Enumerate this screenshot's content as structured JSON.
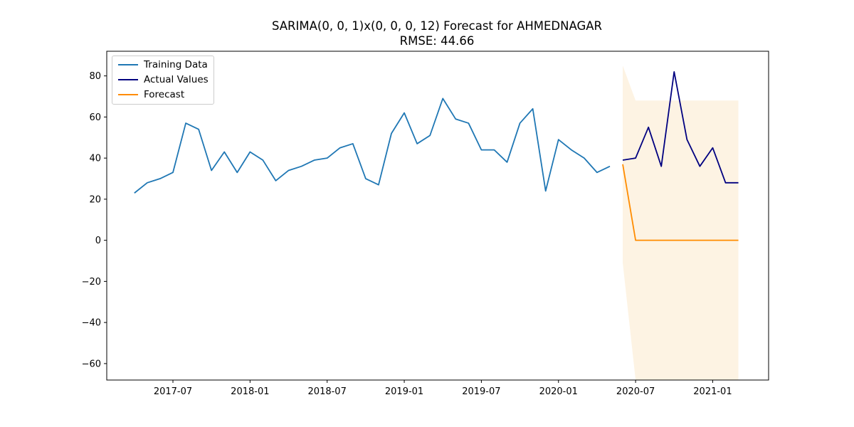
{
  "chart_data": {
    "type": "line",
    "title": "SARIMA(0, 0, 1)x(0, 0, 0, 12) Forecast for AHMEDNAGAR",
    "subtitle": "RMSE: 44.66",
    "xlabel": "",
    "ylabel": "",
    "ylim": [
      -68,
      92
    ],
    "xlim": [
      "2017-02",
      "2021-05"
    ],
    "grid": false,
    "legend_position": "top-left",
    "x_ticks": [
      "2017-07",
      "2018-01",
      "2018-07",
      "2019-01",
      "2019-07",
      "2020-01",
      "2020-07",
      "2021-01"
    ],
    "y_ticks": [
      80,
      60,
      40,
      20,
      0,
      -20,
      -40,
      -60
    ],
    "y_tick_labels": [
      "80",
      "60",
      "40",
      "20",
      "0",
      "−20",
      "−40",
      "−60"
    ],
    "series": [
      {
        "name": "Training Data",
        "color": "#1f77b4",
        "x": [
          "2017-04",
          "2017-05",
          "2017-06",
          "2017-07",
          "2017-08",
          "2017-09",
          "2017-10",
          "2017-11",
          "2017-12",
          "2018-01",
          "2018-02",
          "2018-03",
          "2018-04",
          "2018-05",
          "2018-06",
          "2018-07",
          "2018-08",
          "2018-09",
          "2018-10",
          "2018-11",
          "2018-12",
          "2019-01",
          "2019-02",
          "2019-03",
          "2019-04",
          "2019-05",
          "2019-06",
          "2019-07",
          "2019-08",
          "2019-09",
          "2019-10",
          "2019-11",
          "2019-12",
          "2020-01",
          "2020-02",
          "2020-03",
          "2020-04",
          "2020-05"
        ],
        "values": [
          23,
          28,
          30,
          33,
          57,
          54,
          34,
          43,
          33,
          43,
          39,
          29,
          34,
          36,
          39,
          40,
          45,
          47,
          30,
          27,
          52,
          62,
          47,
          51,
          69,
          59,
          57,
          44,
          44,
          38,
          57,
          64,
          24,
          49,
          44,
          40,
          33,
          36
        ]
      },
      {
        "name": "Actual Values",
        "color": "#000080",
        "x": [
          "2020-06",
          "2020-07",
          "2020-08",
          "2020-09",
          "2020-10",
          "2020-11",
          "2020-12",
          "2021-01",
          "2021-02",
          "2021-03"
        ],
        "values": [
          39,
          40,
          55,
          36,
          82,
          49,
          36,
          45,
          28,
          28
        ]
      },
      {
        "name": "Forecast",
        "color": "#ff8c00",
        "x": [
          "2020-06",
          "2020-07",
          "2020-08",
          "2020-09",
          "2020-10",
          "2020-11",
          "2020-12",
          "2021-01",
          "2021-02",
          "2021-03"
        ],
        "values": [
          37,
          0,
          0,
          0,
          0,
          0,
          0,
          0,
          0,
          0
        ]
      }
    ],
    "confidence_interval": {
      "color": "#fdf3e3",
      "x": [
        "2020-06",
        "2020-07",
        "2020-08",
        "2020-09",
        "2020-10",
        "2020-11",
        "2020-12",
        "2021-01",
        "2021-02",
        "2021-03"
      ],
      "upper": [
        85,
        68,
        68,
        68,
        68,
        68,
        68,
        68,
        68,
        68
      ],
      "lower": [
        -11,
        -68,
        -68,
        -68,
        -68,
        -68,
        -68,
        -68,
        -68,
        -68
      ]
    }
  }
}
